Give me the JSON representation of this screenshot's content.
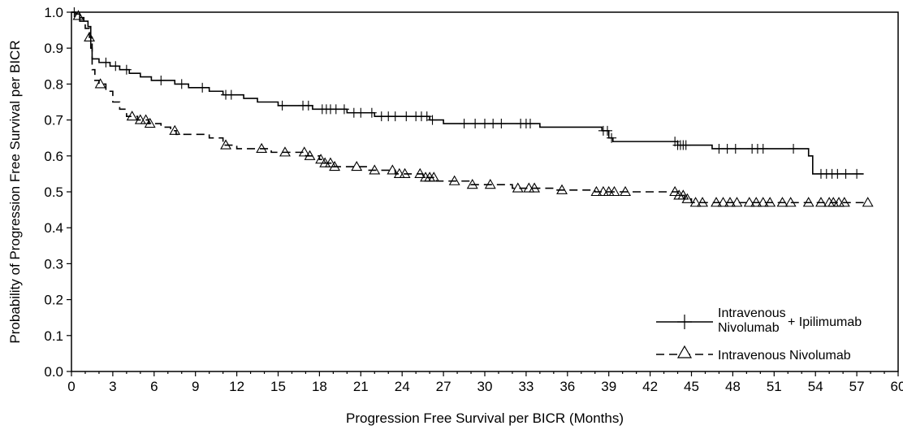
{
  "chart_data": {
    "type": "line",
    "subtype": "kaplan-meier",
    "title": "",
    "xlabel": "Progression Free Survival per BICR (Months)",
    "ylabel": "Probability of Progression Free Survival per BICR",
    "xlim": [
      0,
      60
    ],
    "ylim": [
      0.0,
      1.0
    ],
    "x_ticks": [
      0,
      3,
      6,
      9,
      12,
      15,
      18,
      21,
      24,
      27,
      30,
      33,
      36,
      39,
      42,
      45,
      48,
      51,
      54,
      57,
      60
    ],
    "y_ticks": [
      0.0,
      0.1,
      0.2,
      0.3,
      0.4,
      0.5,
      0.6,
      0.7,
      0.8,
      0.9,
      1.0
    ],
    "grid": false,
    "legend_position": "bottom-right",
    "series": [
      {
        "name": "Intravenous Nivolumab + Ipilimumab",
        "legend_line1": "Intravenous",
        "legend_line2": "Nivolumab",
        "legend_suffix": "+ Ipilimumab",
        "line_style": "solid",
        "marker": "plus",
        "color": "#000000",
        "steps": [
          [
            0,
            1.0
          ],
          [
            0.3,
            0.995
          ],
          [
            0.6,
            0.985
          ],
          [
            0.9,
            0.975
          ],
          [
            1.2,
            0.96
          ],
          [
            1.4,
            0.9
          ],
          [
            1.5,
            0.87
          ],
          [
            2.0,
            0.86
          ],
          [
            2.8,
            0.85
          ],
          [
            3.5,
            0.84
          ],
          [
            4.2,
            0.83
          ],
          [
            5.0,
            0.82
          ],
          [
            5.8,
            0.81
          ],
          [
            7.5,
            0.8
          ],
          [
            8.5,
            0.79
          ],
          [
            10.0,
            0.78
          ],
          [
            11.0,
            0.77
          ],
          [
            12.5,
            0.76
          ],
          [
            13.5,
            0.75
          ],
          [
            15.0,
            0.74
          ],
          [
            17.5,
            0.73
          ],
          [
            20.0,
            0.72
          ],
          [
            22.0,
            0.71
          ],
          [
            26.0,
            0.7
          ],
          [
            27.0,
            0.69
          ],
          [
            34.0,
            0.68
          ],
          [
            38.5,
            0.67
          ],
          [
            39.0,
            0.65
          ],
          [
            39.3,
            0.64
          ],
          [
            44.0,
            0.63
          ],
          [
            46.5,
            0.62
          ],
          [
            53.5,
            0.6
          ],
          [
            53.8,
            0.55
          ],
          [
            57.5,
            0.55
          ]
        ],
        "censor_times": [
          0.2,
          2.5,
          3.2,
          4.0,
          6.5,
          8.0,
          9.5,
          11.2,
          11.6,
          15.3,
          16.8,
          17.2,
          18.2,
          18.5,
          18.8,
          19.2,
          19.8,
          20.5,
          21.0,
          21.8,
          22.5,
          23.0,
          23.5,
          24.3,
          25.0,
          25.4,
          25.8,
          26.2,
          28.5,
          29.3,
          30.0,
          30.6,
          31.2,
          32.6,
          33.0,
          33.3,
          38.6,
          38.9,
          39.2,
          43.8,
          44.0,
          44.2,
          44.4,
          44.6,
          47.0,
          47.6,
          48.2,
          49.4,
          49.8,
          50.2,
          52.4,
          54.4,
          54.8,
          55.2,
          55.6,
          56.2,
          57.0
        ]
      },
      {
        "name": "Intravenous Nivolumab",
        "legend_label": "Intravenous Nivolumab",
        "line_style": "dashed",
        "marker": "triangle",
        "color": "#000000",
        "steps": [
          [
            0,
            1.0
          ],
          [
            0.3,
            0.99
          ],
          [
            0.6,
            0.975
          ],
          [
            1.0,
            0.955
          ],
          [
            1.3,
            0.93
          ],
          [
            1.5,
            0.84
          ],
          [
            1.7,
            0.81
          ],
          [
            2.0,
            0.8
          ],
          [
            2.5,
            0.78
          ],
          [
            3.0,
            0.75
          ],
          [
            3.5,
            0.73
          ],
          [
            4.0,
            0.71
          ],
          [
            4.8,
            0.7
          ],
          [
            5.6,
            0.69
          ],
          [
            6.5,
            0.68
          ],
          [
            7.2,
            0.67
          ],
          [
            7.6,
            0.66
          ],
          [
            10.0,
            0.65
          ],
          [
            11.0,
            0.63
          ],
          [
            12.0,
            0.62
          ],
          [
            14.5,
            0.61
          ],
          [
            17.0,
            0.6
          ],
          [
            18.0,
            0.59
          ],
          [
            18.3,
            0.58
          ],
          [
            19.0,
            0.57
          ],
          [
            21.5,
            0.56
          ],
          [
            23.5,
            0.55
          ],
          [
            25.5,
            0.54
          ],
          [
            26.5,
            0.53
          ],
          [
            29.0,
            0.52
          ],
          [
            32.0,
            0.51
          ],
          [
            35.0,
            0.505
          ],
          [
            38.0,
            0.5
          ],
          [
            44.0,
            0.49
          ],
          [
            44.5,
            0.48
          ],
          [
            45.0,
            0.47
          ],
          [
            57.5,
            0.47
          ]
        ],
        "censor_times": [
          0.5,
          1.3,
          2.1,
          4.4,
          5.0,
          5.4,
          5.7,
          7.5,
          11.2,
          13.8,
          15.5,
          16.9,
          17.3,
          18.1,
          18.4,
          18.8,
          19.1,
          20.7,
          22.0,
          23.3,
          23.8,
          24.2,
          25.3,
          25.7,
          26.0,
          26.3,
          27.8,
          29.1,
          30.4,
          32.4,
          33.2,
          33.6,
          35.6,
          38.1,
          38.6,
          39.0,
          39.4,
          40.2,
          43.8,
          44.1,
          44.4,
          44.7,
          45.3,
          45.8,
          46.8,
          47.3,
          47.8,
          48.3,
          49.2,
          49.7,
          50.2,
          50.7,
          51.6,
          52.2,
          53.5,
          54.4,
          55.0,
          55.3,
          55.7,
          56.1,
          57.8
        ]
      }
    ]
  }
}
